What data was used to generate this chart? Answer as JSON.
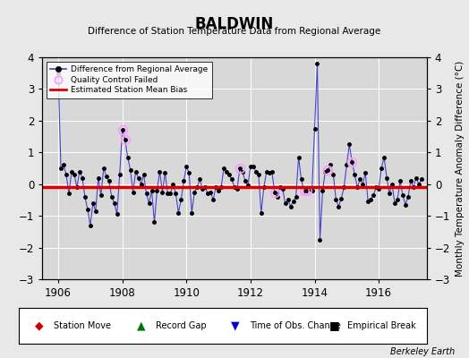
{
  "title": "BALDWIN",
  "subtitle": "Difference of Station Temperature Data from Regional Average",
  "ylabel_right": "Monthly Temperature Anomaly Difference (°C)",
  "credit": "Berkeley Earth",
  "xlim": [
    1905.5,
    1917.5
  ],
  "ylim": [
    -3,
    4
  ],
  "yticks": [
    -3,
    -2,
    -1,
    0,
    1,
    2,
    3,
    4
  ],
  "xticks": [
    1906,
    1908,
    1910,
    1912,
    1914,
    1916
  ],
  "bias_value": -0.08,
  "fig_bg_color": "#e8e8e8",
  "plot_bg_color": "#d8d8d8",
  "line_color": "#4444cc",
  "marker_color": "#000000",
  "bias_color": "#dd0000",
  "qc_color": "#ff99ff",
  "grid_color": "#ffffff",
  "data_x": [
    1906.0,
    1906.083,
    1906.167,
    1906.25,
    1906.333,
    1906.417,
    1906.5,
    1906.583,
    1906.667,
    1906.75,
    1906.833,
    1906.917,
    1907.0,
    1907.083,
    1907.167,
    1907.25,
    1907.333,
    1907.417,
    1907.5,
    1907.583,
    1907.667,
    1907.75,
    1907.833,
    1907.917,
    1908.0,
    1908.083,
    1908.167,
    1908.25,
    1908.333,
    1908.417,
    1908.5,
    1908.583,
    1908.667,
    1908.75,
    1908.833,
    1908.917,
    1909.0,
    1909.083,
    1909.167,
    1909.25,
    1909.333,
    1909.417,
    1909.5,
    1909.583,
    1909.667,
    1909.75,
    1909.833,
    1909.917,
    1910.0,
    1910.083,
    1910.167,
    1910.25,
    1910.333,
    1910.417,
    1910.5,
    1910.583,
    1910.667,
    1910.75,
    1910.833,
    1910.917,
    1911.0,
    1911.083,
    1911.167,
    1911.25,
    1911.333,
    1911.417,
    1911.5,
    1911.583,
    1911.667,
    1911.75,
    1911.833,
    1911.917,
    1912.0,
    1912.083,
    1912.167,
    1912.25,
    1912.333,
    1912.417,
    1912.5,
    1912.583,
    1912.667,
    1912.75,
    1912.833,
    1912.917,
    1913.0,
    1913.083,
    1913.167,
    1913.25,
    1913.333,
    1913.417,
    1913.5,
    1913.583,
    1913.667,
    1913.75,
    1913.833,
    1913.917,
    1914.0,
    1914.083,
    1914.167,
    1914.25,
    1914.333,
    1914.417,
    1914.5,
    1914.583,
    1914.667,
    1914.75,
    1914.833,
    1914.917,
    1915.0,
    1915.083,
    1915.167,
    1915.25,
    1915.333,
    1915.417,
    1915.5,
    1915.583,
    1915.667,
    1915.75,
    1915.833,
    1915.917,
    1916.0,
    1916.083,
    1916.167,
    1916.25,
    1916.333,
    1916.417,
    1916.5,
    1916.583,
    1916.667,
    1916.75,
    1916.833,
    1916.917,
    1917.0,
    1917.083,
    1917.167,
    1917.25,
    1917.333
  ],
  "data_y": [
    3.5,
    0.5,
    0.6,
    0.3,
    -0.3,
    0.4,
    0.3,
    -0.1,
    0.4,
    0.2,
    -0.4,
    -0.8,
    -1.3,
    -0.6,
    -0.85,
    0.2,
    -0.35,
    0.5,
    0.25,
    0.1,
    -0.4,
    -0.6,
    -0.95,
    0.3,
    1.7,
    1.4,
    0.85,
    0.45,
    -0.25,
    0.4,
    0.2,
    0.0,
    0.3,
    -0.3,
    -0.6,
    -0.2,
    -1.2,
    -0.2,
    0.4,
    -0.25,
    0.35,
    -0.3,
    -0.3,
    0.0,
    -0.3,
    -0.9,
    -0.5,
    0.1,
    0.55,
    0.35,
    -0.9,
    -0.25,
    -0.1,
    0.15,
    -0.15,
    -0.1,
    -0.3,
    -0.25,
    -0.5,
    -0.1,
    -0.2,
    -0.1,
    0.5,
    0.4,
    0.3,
    0.15,
    -0.1,
    -0.15,
    0.5,
    0.4,
    0.1,
    -0.05,
    0.55,
    0.55,
    0.4,
    0.3,
    -0.9,
    -0.1,
    0.4,
    0.35,
    0.4,
    -0.25,
    -0.4,
    -0.1,
    -0.15,
    -0.6,
    -0.5,
    -0.7,
    -0.55,
    -0.4,
    0.85,
    0.15,
    -0.2,
    -0.2,
    -0.15,
    -0.2,
    1.75,
    3.8,
    -1.75,
    -0.2,
    0.4,
    0.45,
    0.6,
    0.3,
    -0.5,
    -0.7,
    -0.45,
    -0.1,
    0.6,
    1.25,
    0.7,
    0.3,
    -0.1,
    0.15,
    0.0,
    0.35,
    -0.55,
    -0.5,
    -0.35,
    -0.1,
    -0.15,
    0.5,
    0.85,
    0.2,
    -0.3,
    0.0,
    -0.6,
    -0.5,
    0.1,
    -0.35,
    -0.65,
    -0.4,
    0.1,
    -0.1,
    0.2,
    0.0,
    0.15
  ],
  "qc_failed_indices": [
    24,
    25,
    68,
    81,
    92,
    93,
    101,
    110
  ],
  "bottom_legend": [
    {
      "symbol": "◆",
      "label": "Station Move",
      "color": "#cc0000"
    },
    {
      "symbol": "▲",
      "label": "Record Gap",
      "color": "#007700"
    },
    {
      "symbol": "▼",
      "label": "Time of Obs. Change",
      "color": "#0000cc"
    },
    {
      "symbol": "■",
      "label": "Empirical Break",
      "color": "#000000"
    }
  ]
}
